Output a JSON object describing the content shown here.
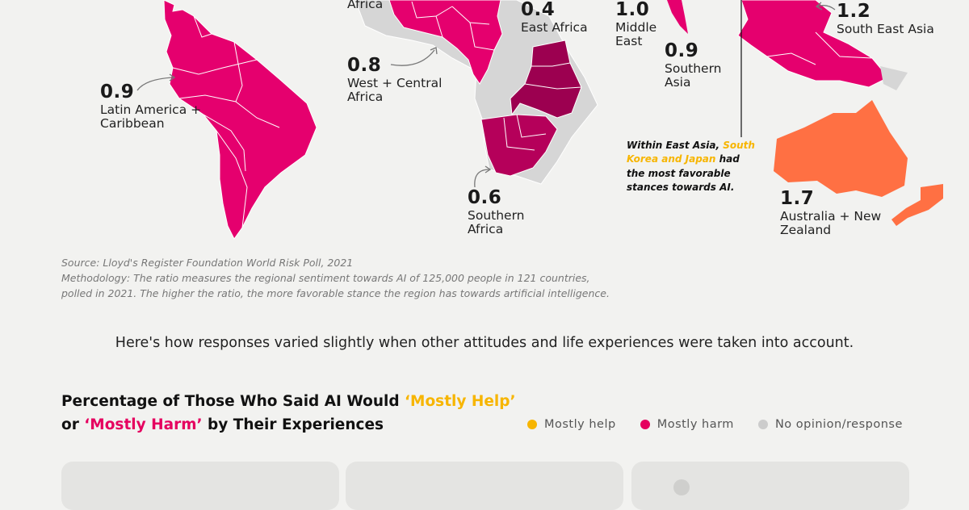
{
  "colors": {
    "mostly_help": "#f7b500",
    "mostly_harm": "#e5005f",
    "no_opinion": "#cccccc",
    "ratio_0_4": "#9c0050",
    "ratio_0_6": "#b5005a",
    "ratio_0_8_to_1_2": "#e5006e",
    "ratio_1_7": "#ff7043",
    "no_data": "#d6d6d6"
  },
  "regions": [
    {
      "ratio": "",
      "name": "Africa"
    },
    {
      "ratio": "0.4",
      "name": "East Africa"
    },
    {
      "ratio": "1.0",
      "name": "Middle East"
    },
    {
      "ratio": "1.2",
      "name": "South East Asia"
    },
    {
      "ratio": "0.8",
      "name": "West + Central Africa"
    },
    {
      "ratio": "0.9",
      "name": "Southern Asia"
    },
    {
      "ratio": "0.9",
      "name": "Latin America + Caribbean"
    },
    {
      "ratio": "0.6",
      "name": "Southern Africa"
    },
    {
      "ratio": "1.7",
      "name": "Australia + New Zealand"
    }
  ],
  "callout": {
    "prefix": "Within East Asia, ",
    "highlight": "South Korea and Japan",
    "suffix": " had the most favorable stances towards AI."
  },
  "source": {
    "line": "Source: Lloyd's Register Foundation World Risk Poll, 2021",
    "methodology": "Methodology: The ratio measures the regional sentiment towards AI of 125,000 people in 121 countries, polled in 2021. The higher the ratio, the more favorable stance the region has towards artificial intelligence."
  },
  "intro": "Here's how responses varied slightly when other attitudes and life experiences were taken into account.",
  "chart_title": {
    "part1": "Percentage of Those Who Said AI Would ",
    "help": "‘Mostly Help’",
    "part2": "or ",
    "harm": "‘Mostly Harm’",
    "part3": " by Their Experiences"
  },
  "legend": [
    {
      "label": "Mostly help",
      "color": "#f7b500"
    },
    {
      "label": "Mostly harm",
      "color": "#e5005f"
    },
    {
      "label": "No opinion/response",
      "color": "#cccccc"
    }
  ]
}
